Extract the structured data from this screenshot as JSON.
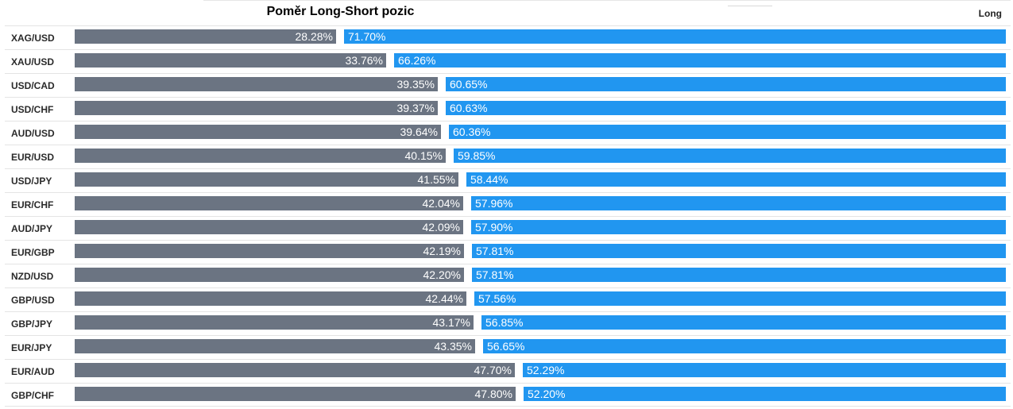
{
  "header": {
    "title": "Poměr Long-Short pozic",
    "long_label": "Long"
  },
  "colors": {
    "short": "#6b7482",
    "long": "#2196f0"
  },
  "chart_data": {
    "type": "bar",
    "title": "Poměr Long-Short pozic",
    "orientation": "horizontal",
    "stacked": true,
    "categories": [
      "XAG/USD",
      "XAU/USD",
      "USD/CAD",
      "USD/CHF",
      "AUD/USD",
      "EUR/USD",
      "USD/JPY",
      "EUR/CHF",
      "AUD/JPY",
      "EUR/GBP",
      "NZD/USD",
      "GBP/USD",
      "GBP/JPY",
      "EUR/JPY",
      "EUR/AUD",
      "GBP/CHF"
    ],
    "series": [
      {
        "values": [
          28.28,
          33.76,
          39.35,
          39.37,
          39.64,
          40.15,
          41.55,
          42.04,
          42.09,
          42.19,
          42.2,
          42.44,
          43.17,
          43.35,
          47.7,
          47.8
        ],
        "labels": [
          "28.28%",
          "33.76%",
          "39.35%",
          "39.37%",
          "39.64%",
          "40.15%",
          "41.55%",
          "42.04%",
          "42.09%",
          "42.19%",
          "42.20%",
          "42.44%",
          "43.17%",
          "43.35%",
          "47.70%",
          "47.80%"
        ]
      },
      {
        "name": "Long",
        "values": [
          71.7,
          66.26,
          60.65,
          60.63,
          60.36,
          59.85,
          58.44,
          57.96,
          57.9,
          57.81,
          57.81,
          57.56,
          56.85,
          56.65,
          52.29,
          52.2
        ],
        "labels": [
          "71.70%",
          "66.26%",
          "60.65%",
          "60.63%",
          "60.36%",
          "59.85%",
          "58.44%",
          "57.96%",
          "57.90%",
          "57.81%",
          "57.81%",
          "57.56%",
          "56.85%",
          "56.65%",
          "52.29%",
          "52.20%"
        ]
      }
    ],
    "xlim": [
      0,
      100
    ],
    "grid": false
  }
}
